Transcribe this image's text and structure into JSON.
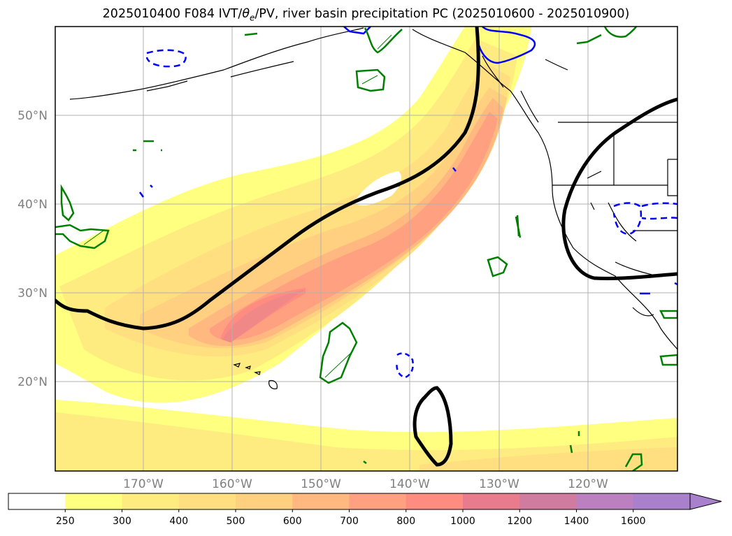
{
  "title_prefix": "2025010400 F084 IVT/",
  "title_theta": "θ",
  "title_theta_sub": "e",
  "title_suffix": "/PV, river basin precipitation PC (2025010600 - 2025010900)",
  "lat_labels": [
    "50°N",
    "40°N",
    "30°N",
    "20°N"
  ],
  "lon_labels": [
    "170°W",
    "160°W",
    "150°W",
    "140°W",
    "130°W",
    "120°W"
  ],
  "colorbar": {
    "levels": [
      "250",
      "300",
      "400",
      "500",
      "600",
      "700",
      "800",
      "1000",
      "1200",
      "1400",
      "1600"
    ],
    "colors": [
      "#ffffff",
      "#ffff80",
      "#ffec80",
      "#ffdf80",
      "#ffd080",
      "#ffb880",
      "#ffa080",
      "#ff8c80",
      "#e87c8c",
      "#d07ca0",
      "#bc80c0",
      "#a880cc"
    ],
    "extend": "max"
  },
  "colors": {
    "pv_line": "#000000",
    "theta_e_contour": "#0000ff",
    "precip_contour": "#008000",
    "coastline": "#000000",
    "grid": "#b0b0b0"
  }
}
